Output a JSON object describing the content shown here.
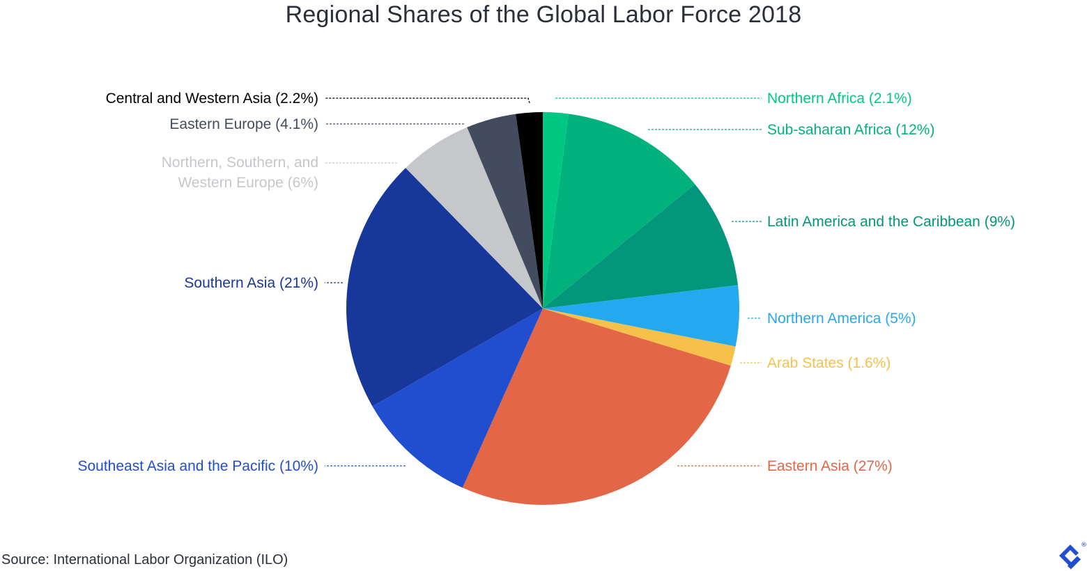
{
  "chart_data": {
    "type": "pie",
    "title": "Regional Shares of the Global Labor Force 2018",
    "source": "Source: International Labor Organization (ILO)",
    "slices": [
      {
        "label": "Northern Africa (2.1%)",
        "value": 2.1,
        "color": "#00c882",
        "label_color": "#00c882"
      },
      {
        "label": "Sub-saharan Africa (12%)",
        "value": 12,
        "color": "#02b27c",
        "label_color": "#02b27c"
      },
      {
        "label": "Latin America and the Caribbean (9%)",
        "value": 9,
        "color": "#03967a",
        "label_color": "#03967a"
      },
      {
        "label": "Northern America (5%)",
        "value": 5,
        "color": "#24a9ef",
        "label_color": "#24a9ef"
      },
      {
        "label": "Arab States (1.6%)",
        "value": 1.6,
        "color": "#f6c14b",
        "label_color": "#f6c14b"
      },
      {
        "label": "Eastern Asia (27%)",
        "value": 27,
        "color": "#e36746",
        "label_color": "#e36746"
      },
      {
        "label": "Southeast Asia and the Pacific (10%)",
        "value": 10,
        "color": "#204ecf",
        "label_color": "#204ecf"
      },
      {
        "label": "Southern Asia (21%)",
        "value": 21,
        "color": "#18379a",
        "label_color": "#18379a"
      },
      {
        "label": "Northern, Southern, and Western Europe (6%)",
        "value": 6,
        "color": "#c5c7cb",
        "label_color": "#c5c7cb"
      },
      {
        "label": "Eastern Europe (4.1%)",
        "value": 4.1,
        "color": "#434c5e",
        "label_color": "#434c5e"
      },
      {
        "label": "Central and Western Asia (2.2%)",
        "value": 2.2,
        "color": "#000000",
        "label_color": "#000000"
      }
    ]
  },
  "logo": {
    "name": "brand-logo-icon",
    "color": "#204ecf"
  }
}
